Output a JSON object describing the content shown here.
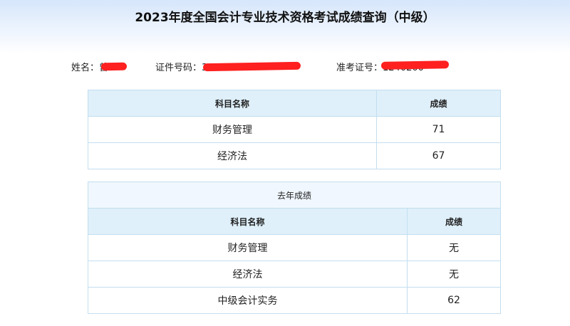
{
  "title": "2023年度全国会计专业技术资格考试成绩查询（中级）",
  "info": {
    "name_label": "姓名：",
    "name_value": "曾",
    "id_label": "证件号码：",
    "id_value": "3607",
    "exam_label": "准考证号：",
    "exam_value": "1240200"
  },
  "current": {
    "headers": [
      "科目名称",
      "成绩"
    ],
    "rows": [
      [
        "财务管理",
        "71"
      ],
      [
        "经济法",
        "67"
      ]
    ]
  },
  "last_year": {
    "caption": "去年成绩",
    "headers": [
      "科目名称",
      "成绩"
    ],
    "rows": [
      [
        "财务管理",
        "无"
      ],
      [
        "经济法",
        "无"
      ],
      [
        "中级会计实务",
        "62"
      ]
    ]
  },
  "colors": {
    "header_bg": "#dff0fa",
    "border": "#c3def0",
    "redaction": "#ff2020"
  }
}
